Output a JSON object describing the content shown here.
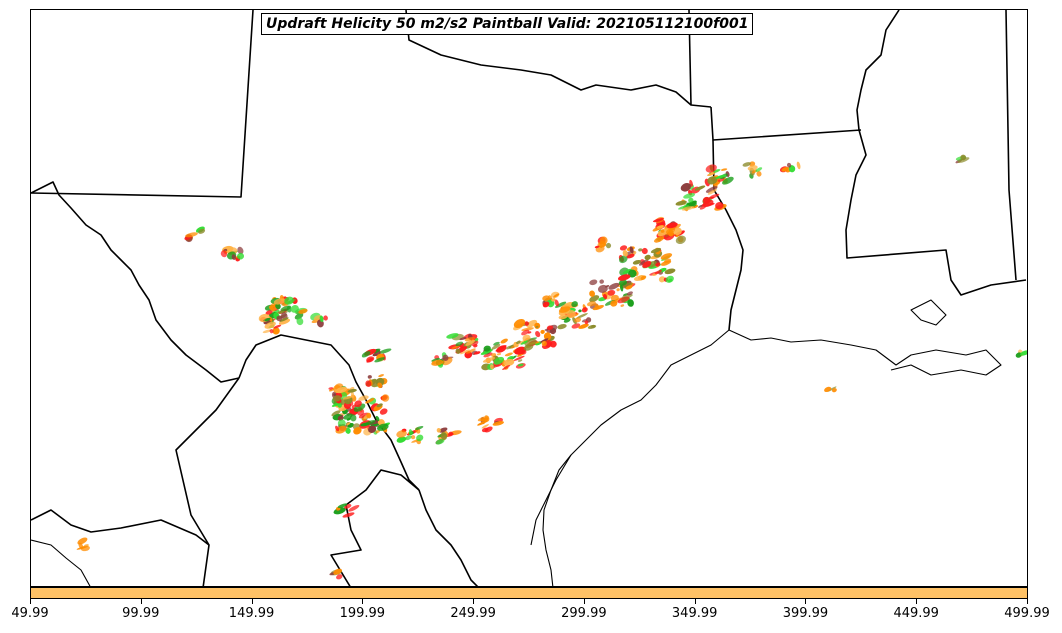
{
  "title": "Updraft Helicity 50 m2/s2 Paintball Valid: 202105112100f001",
  "colorbar": {
    "color": "#ffc266",
    "ticks": [
      "49.99",
      "99.99",
      "149.99",
      "199.99",
      "249.99",
      "299.99",
      "349.99",
      "399.99",
      "449.99",
      "499.99"
    ]
  },
  "colors": {
    "orange": "#ff8c00",
    "red": "#ff1a1a",
    "green": "#1a9e1a",
    "bright_green": "#33dd33",
    "olive": "#8b8b2a",
    "brown": "#8b3a3a",
    "light_orange": "#ffb347"
  }
}
